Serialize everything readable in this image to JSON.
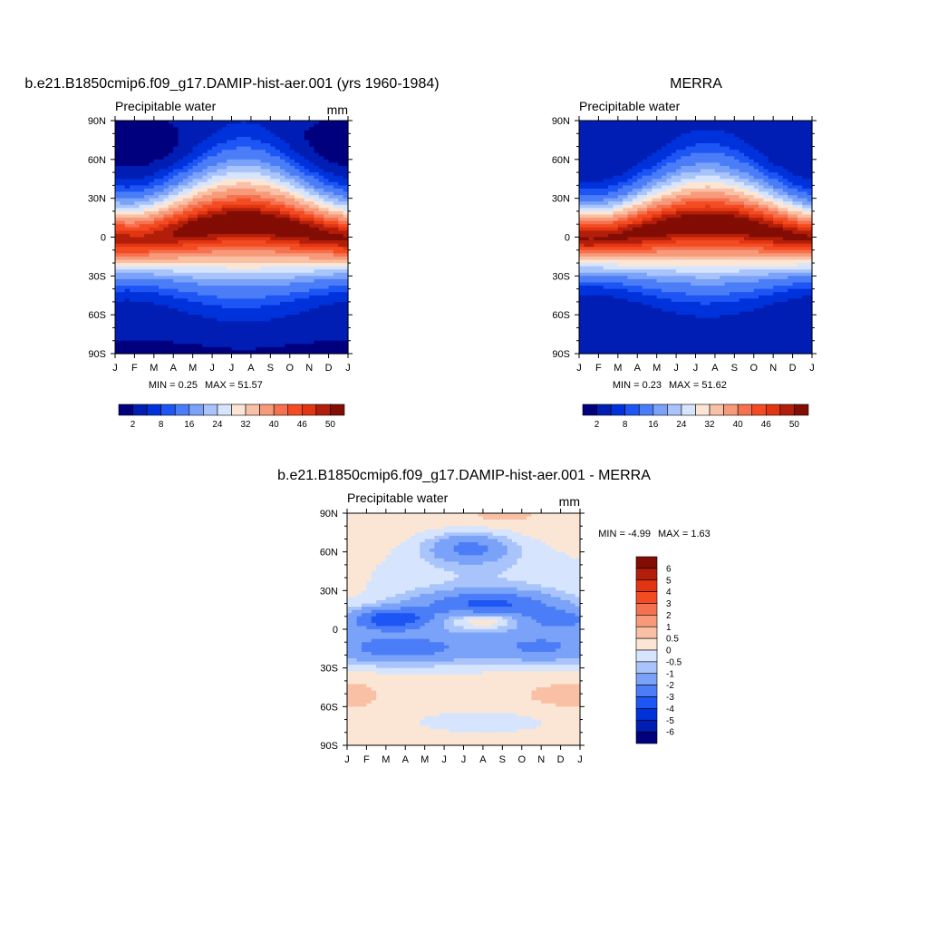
{
  "chart_data": [
    {
      "type": "heatmap",
      "title": "b.e21.B1850cmip6.f09_g17.DAMIP-hist-aer.001 (yrs 1960-1984)",
      "subtitle": "Precipitable water",
      "units": "mm",
      "x_ticks": [
        "J",
        "F",
        "M",
        "A",
        "M",
        "J",
        "J",
        "A",
        "S",
        "O",
        "N",
        "D",
        "J"
      ],
      "y_ticks": [
        "90N",
        "60N",
        "30N",
        "0",
        "30S",
        "60S",
        "90S"
      ],
      "min_label": "MIN =   0.25",
      "max_label": "MAX =  51.57",
      "contour_levels": [
        2,
        5,
        8,
        11,
        16,
        20,
        24,
        28,
        32,
        36,
        40,
        43,
        46,
        48,
        50
      ],
      "colorbar_labels": [
        "2",
        "8",
        "16",
        "24",
        "32",
        "40",
        "46",
        "50"
      ],
      "colors": [
        "#00007f",
        "#001eb4",
        "#0032dc",
        "#1e55f5",
        "#4a7df7",
        "#7aa2f9",
        "#a9c4fb",
        "#d6e5fd",
        "#fbe6d6",
        "#f9c0a5",
        "#f79a7a",
        "#f6714f",
        "#f44c22",
        "#e23612",
        "#b31e0a",
        "#820d04"
      ],
      "min": 0.25,
      "max": 51.57
    },
    {
      "type": "heatmap",
      "title": "MERRA",
      "subtitle": "Precipitable water",
      "units": "",
      "x_ticks": [
        "J",
        "F",
        "M",
        "A",
        "M",
        "J",
        "J",
        "A",
        "S",
        "O",
        "N",
        "D",
        "J"
      ],
      "y_ticks": [
        "90N",
        "60N",
        "30N",
        "0",
        "30S",
        "60S",
        "90S"
      ],
      "min_label": "MIN =   0.23",
      "max_label": "MAX =  51.62",
      "contour_levels": [
        2,
        5,
        8,
        11,
        16,
        20,
        24,
        28,
        32,
        36,
        40,
        43,
        46,
        48,
        50
      ],
      "colorbar_labels": [
        "2",
        "8",
        "16",
        "24",
        "32",
        "40",
        "46",
        "50"
      ],
      "colors": [
        "#00007f",
        "#001eb4",
        "#0032dc",
        "#1e55f5",
        "#4a7df7",
        "#7aa2f9",
        "#a9c4fb",
        "#d6e5fd",
        "#fbe6d6",
        "#f9c0a5",
        "#f79a7a",
        "#f6714f",
        "#f44c22",
        "#e23612",
        "#b31e0a",
        "#820d04"
      ],
      "min": 0.23,
      "max": 51.62
    },
    {
      "type": "heatmap",
      "title": "b.e21.B1850cmip6.f09_g17.DAMIP-hist-aer.001 - MERRA",
      "subtitle": "Precipitable water",
      "units": "mm",
      "x_ticks": [
        "J",
        "F",
        "M",
        "A",
        "M",
        "J",
        "J",
        "A",
        "S",
        "O",
        "N",
        "D",
        "J"
      ],
      "y_ticks": [
        "90N",
        "60N",
        "30N",
        "0",
        "30S",
        "60S",
        "90S"
      ],
      "min_label": "MIN =  -4.99",
      "max_label": "MAX =   1.63",
      "contour_levels": [
        -6,
        -5,
        -4,
        -3,
        -2,
        -1,
        -0.5,
        0,
        0.5,
        1,
        2,
        3,
        4,
        5,
        6
      ],
      "colorbar_labels": [
        "6",
        "5",
        "4",
        "3",
        "2",
        "1",
        "0.5",
        "0",
        "-0.5",
        "-1",
        "-2",
        "-3",
        "-4",
        "-5",
        "-6"
      ],
      "colors": [
        "#00007f",
        "#001eb4",
        "#0032dc",
        "#1e55f5",
        "#4a7df7",
        "#7aa2f9",
        "#a9c4fb",
        "#d6e5fd",
        "#fbe6d6",
        "#f9c0a5",
        "#f79a7a",
        "#f6714f",
        "#f44c22",
        "#e23612",
        "#b31e0a",
        "#820d04"
      ],
      "min": -4.99,
      "max": 1.63
    }
  ]
}
